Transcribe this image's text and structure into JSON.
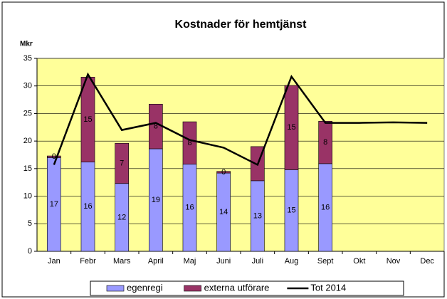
{
  "chart_data": {
    "type": "stacked_bar_line",
    "title": "Kostnader för hemtjänst",
    "y_label": "Mkr",
    "categories": [
      "Jan",
      "Febr",
      "Mars",
      "April",
      "Maj",
      "Juni",
      "Juli",
      "Aug",
      "Sept",
      "Okt",
      "Nov",
      "Dec"
    ],
    "series": [
      {
        "name": "egenregi",
        "color": "#9999ff",
        "kind": "bar",
        "values": [
          17.0,
          16.2,
          12.3,
          18.6,
          15.8,
          14.2,
          12.8,
          14.8,
          15.9,
          null,
          null,
          null
        ],
        "value_labels": [
          "17",
          "16",
          "12",
          "19",
          "16",
          "14",
          "13",
          "15",
          "16",
          null,
          null,
          null
        ]
      },
      {
        "name": "externa utförare",
        "color": "#993366",
        "kind": "bar",
        "values": [
          0.3,
          15.4,
          7.3,
          8.1,
          7.7,
          0.3,
          6.2,
          15.3,
          7.7,
          null,
          null,
          null
        ],
        "value_labels": [
          "0",
          "15",
          "7",
          "8",
          "8",
          "0",
          null,
          "15",
          "8",
          null,
          null,
          null
        ]
      },
      {
        "name": "Tot 2014",
        "color": "#000000",
        "kind": "line",
        "values": [
          15.7,
          32.1,
          22.0,
          23.3,
          20.2,
          18.8,
          15.7,
          31.7,
          23.3,
          23.3,
          23.4,
          23.3
        ]
      }
    ],
    "ylim": [
      0,
      35
    ],
    "yticks": [
      0,
      5,
      10,
      15,
      20,
      25,
      30,
      35
    ],
    "grid": true,
    "plot_background": "#ffff99"
  }
}
